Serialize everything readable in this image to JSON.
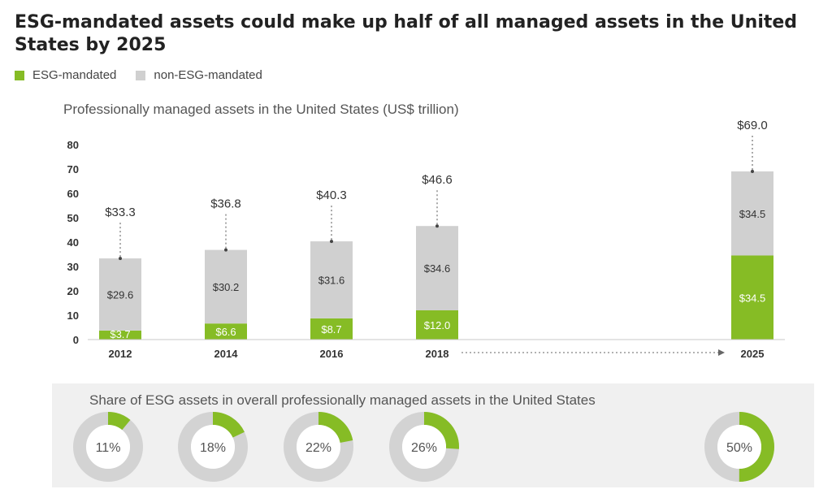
{
  "title": "ESG-mandated assets could make up half of all managed assets in the United States by 2025",
  "legend": [
    {
      "label": "ESG-mandated",
      "color": "#86bc25"
    },
    {
      "label": "non-ESG-mandated",
      "color": "#d0d0d0"
    }
  ],
  "chart_data": {
    "type": "bar",
    "stacked": true,
    "subtitle": "Professionally managed assets in the United States (US$ trillion)",
    "categories": [
      "2012",
      "2014",
      "2016",
      "2018",
      "2025"
    ],
    "series": [
      {
        "name": "ESG-mandated",
        "color": "#86bc25",
        "values": [
          3.7,
          6.6,
          8.7,
          12.0,
          34.5
        ],
        "labels": [
          "$3.7",
          "$6.6",
          "$8.7",
          "$12.0",
          "$34.5"
        ]
      },
      {
        "name": "non-ESG-mandated",
        "color": "#d0d0d0",
        "values": [
          29.6,
          30.2,
          31.6,
          34.6,
          34.5
        ],
        "labels": [
          "$29.6",
          "$30.2",
          "$31.6",
          "$34.6",
          "$34.5"
        ]
      }
    ],
    "totals": [
      33.3,
      36.8,
      40.3,
      46.6,
      69.0
    ],
    "total_labels": [
      "$33.3",
      "$36.8",
      "$40.3",
      "$46.6",
      "$69.0"
    ],
    "ylim": [
      0,
      80
    ],
    "yticks": [
      "0",
      "10",
      "20",
      "30",
      "40",
      "50",
      "60",
      "70",
      "80"
    ],
    "grid": false,
    "legend_position": "top-left"
  },
  "share_chart": {
    "type": "pie",
    "title": "Share of ESG assets in overall professionally managed assets in the United States",
    "values": [
      0.11,
      0.18,
      0.22,
      0.26,
      0.5
    ],
    "labels": [
      "11%",
      "18%",
      "22%",
      "26%",
      "50%"
    ]
  }
}
